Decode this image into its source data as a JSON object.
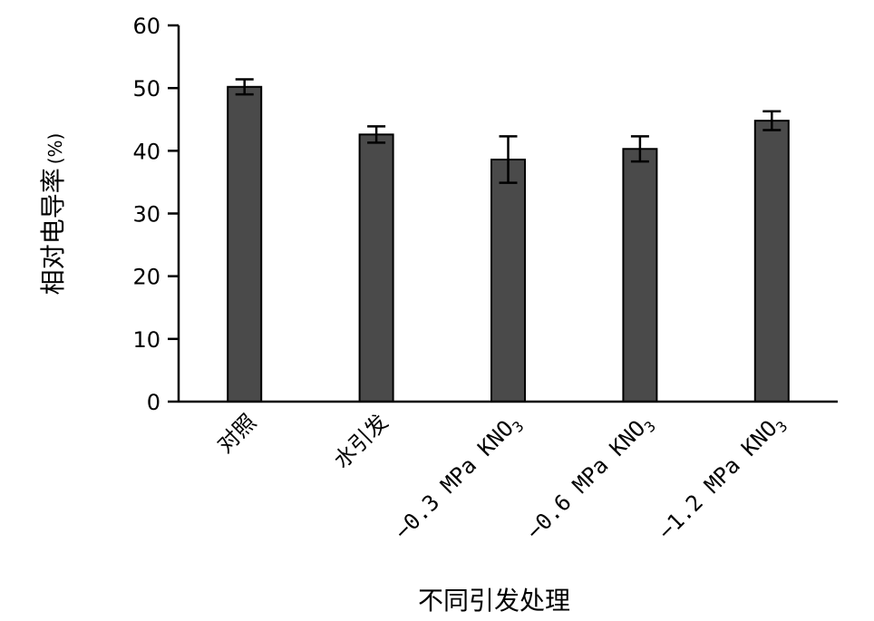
{
  "chart_data": {
    "type": "bar",
    "categories": [
      "对照",
      "水引发",
      "−0.3 MPa KNO3",
      "−0.6 MPa KNO3",
      "−1.2 MPa KNO3"
    ],
    "category_labels": [
      {
        "main": "对照",
        "sub": ""
      },
      {
        "main": "水引发",
        "sub": ""
      },
      {
        "main": "−0.3 MPa KNO",
        "sub": "3"
      },
      {
        "main": "−0.6 MPa KNO",
        "sub": "3"
      },
      {
        "main": "−1.2 MPa KNO",
        "sub": "3"
      }
    ],
    "values": [
      50.2,
      42.6,
      38.6,
      40.3,
      44.8
    ],
    "errors": [
      1.2,
      1.3,
      3.7,
      2.0,
      1.5
    ],
    "xlabel": "不同引发处理",
    "ylabel": "相对电导率",
    "ylabel_unit": "(%)",
    "ylim": [
      0,
      60
    ],
    "yticks": [
      0,
      10,
      20,
      30,
      40,
      50,
      60
    ],
    "bar_color": "#4a4a4a",
    "grid": false
  }
}
